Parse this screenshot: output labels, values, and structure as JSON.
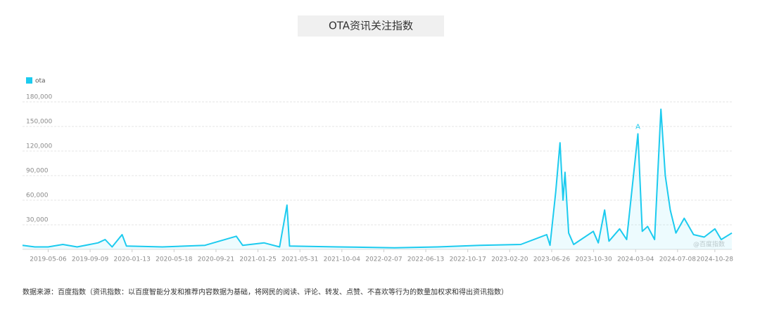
{
  "chart_data": {
    "type": "line",
    "title": "OTA资讯关注指数",
    "legend": "top-left",
    "grid": true,
    "watermark": "@百度指数",
    "annotation": {
      "x": "2024-03-11",
      "label": "A"
    },
    "source": "数据来源：百度指数（资讯指数：以百度智能分发和推荐内容数据为基础，将网民的阅读、评论、转发、点赞、不喜欢等行为的数量加权求和得出资讯指数）",
    "xlim": [
      "2019-02-18",
      "2024-12-18"
    ],
    "xticks": [
      "2019-05-06",
      "2019-09-09",
      "2020-01-13",
      "2020-05-18",
      "2020-09-21",
      "2021-01-25",
      "2021-05-31",
      "2021-10-04",
      "2022-02-07",
      "2022-06-13",
      "2022-10-17",
      "2023-02-20",
      "2023-06-26",
      "2023-10-30",
      "2024-03-04",
      "2024-07-08",
      "2024-10-28"
    ],
    "ylim": [
      0,
      180000
    ],
    "yticks": [
      {
        "value": 30000,
        "label": "30,000"
      },
      {
        "value": 60000,
        "label": "60,000"
      },
      {
        "value": 90000,
        "label": "90,000"
      },
      {
        "value": 120000,
        "label": "120,000"
      },
      {
        "value": 150000,
        "label": "150,000"
      },
      {
        "value": 180000,
        "label": "180,000"
      }
    ],
    "x": [
      "2019-02-18",
      "2019-03-27",
      "2019-05-06",
      "2019-06-19",
      "2019-08-01",
      "2019-10-03",
      "2019-10-24",
      "2019-11-14",
      "2019-12-14",
      "2019-12-27",
      "2020-04-13",
      "2020-08-19",
      "2020-11-21",
      "2020-12-10",
      "2021-02-12",
      "2021-03-31",
      "2021-04-22",
      "2021-04-30",
      "2021-09-22",
      "2022-03-11",
      "2022-07-18",
      "2022-11-22",
      "2023-03-25",
      "2023-06-11",
      "2023-06-21",
      "2023-07-08",
      "2023-07-21",
      "2023-07-30",
      "2023-08-05",
      "2023-08-16",
      "2023-08-31",
      "2023-10-29",
      "2023-11-13",
      "2023-12-02",
      "2023-12-15",
      "2024-01-16",
      "2024-02-06",
      "2024-03-11",
      "2024-03-24",
      "2024-04-09",
      "2024-04-30",
      "2024-05-19",
      "2024-06-01",
      "2024-06-16",
      "2024-07-03",
      "2024-07-28",
      "2024-08-25",
      "2024-09-26",
      "2024-10-28",
      "2024-11-16",
      "2024-12-18"
    ],
    "series": [
      {
        "name": "ota",
        "color": "#1ccbef",
        "values": [
          5000,
          3000,
          3000,
          6000,
          3000,
          8000,
          12000,
          3000,
          18000,
          4000,
          3000,
          5000,
          16000,
          5000,
          8000,
          3000,
          54000,
          4000,
          3000,
          2000,
          3000,
          5000,
          6000,
          18000,
          5000,
          70000,
          130000,
          60000,
          94000,
          20000,
          6000,
          22000,
          8000,
          48000,
          10000,
          25000,
          12000,
          141000,
          22000,
          28000,
          12000,
          171000,
          90000,
          48000,
          20000,
          38000,
          18000,
          15000,
          25000,
          12000,
          20000
        ]
      }
    ]
  }
}
